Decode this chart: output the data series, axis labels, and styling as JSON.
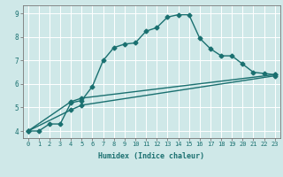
{
  "xlabel": "Humidex (Indice chaleur)",
  "bg_color": "#cfe8e8",
  "grid_color": "#ffffff",
  "line_color": "#1a7070",
  "xlim": [
    -0.5,
    23.5
  ],
  "ylim": [
    3.7,
    9.35
  ],
  "xticks": [
    0,
    1,
    2,
    3,
    4,
    5,
    6,
    7,
    8,
    9,
    10,
    11,
    12,
    13,
    14,
    15,
    16,
    17,
    18,
    19,
    20,
    21,
    22,
    23
  ],
  "yticks": [
    4,
    5,
    6,
    7,
    8,
    9
  ],
  "line1_x": [
    0,
    1,
    2,
    3,
    4,
    5,
    6,
    7,
    8,
    9,
    10,
    11,
    12,
    13,
    14,
    15,
    16,
    17,
    18,
    19,
    20,
    21,
    22,
    23
  ],
  "line1_y": [
    4.0,
    4.0,
    4.3,
    4.3,
    5.2,
    5.3,
    5.9,
    7.0,
    7.55,
    7.7,
    7.75,
    8.25,
    8.4,
    8.85,
    8.95,
    8.95,
    7.95,
    7.5,
    7.2,
    7.2,
    6.85,
    6.5,
    6.45,
    6.4
  ],
  "line2_x": [
    0,
    4,
    5,
    23
  ],
  "line2_y": [
    4.0,
    5.25,
    5.4,
    6.4
  ],
  "line3_x": [
    0,
    4,
    5,
    23
  ],
  "line3_y": [
    4.0,
    4.9,
    5.1,
    6.35
  ],
  "marker_size": 2.5,
  "linewidth": 1.0,
  "tick_fontsize": 5.0,
  "xlabel_fontsize": 6.0
}
